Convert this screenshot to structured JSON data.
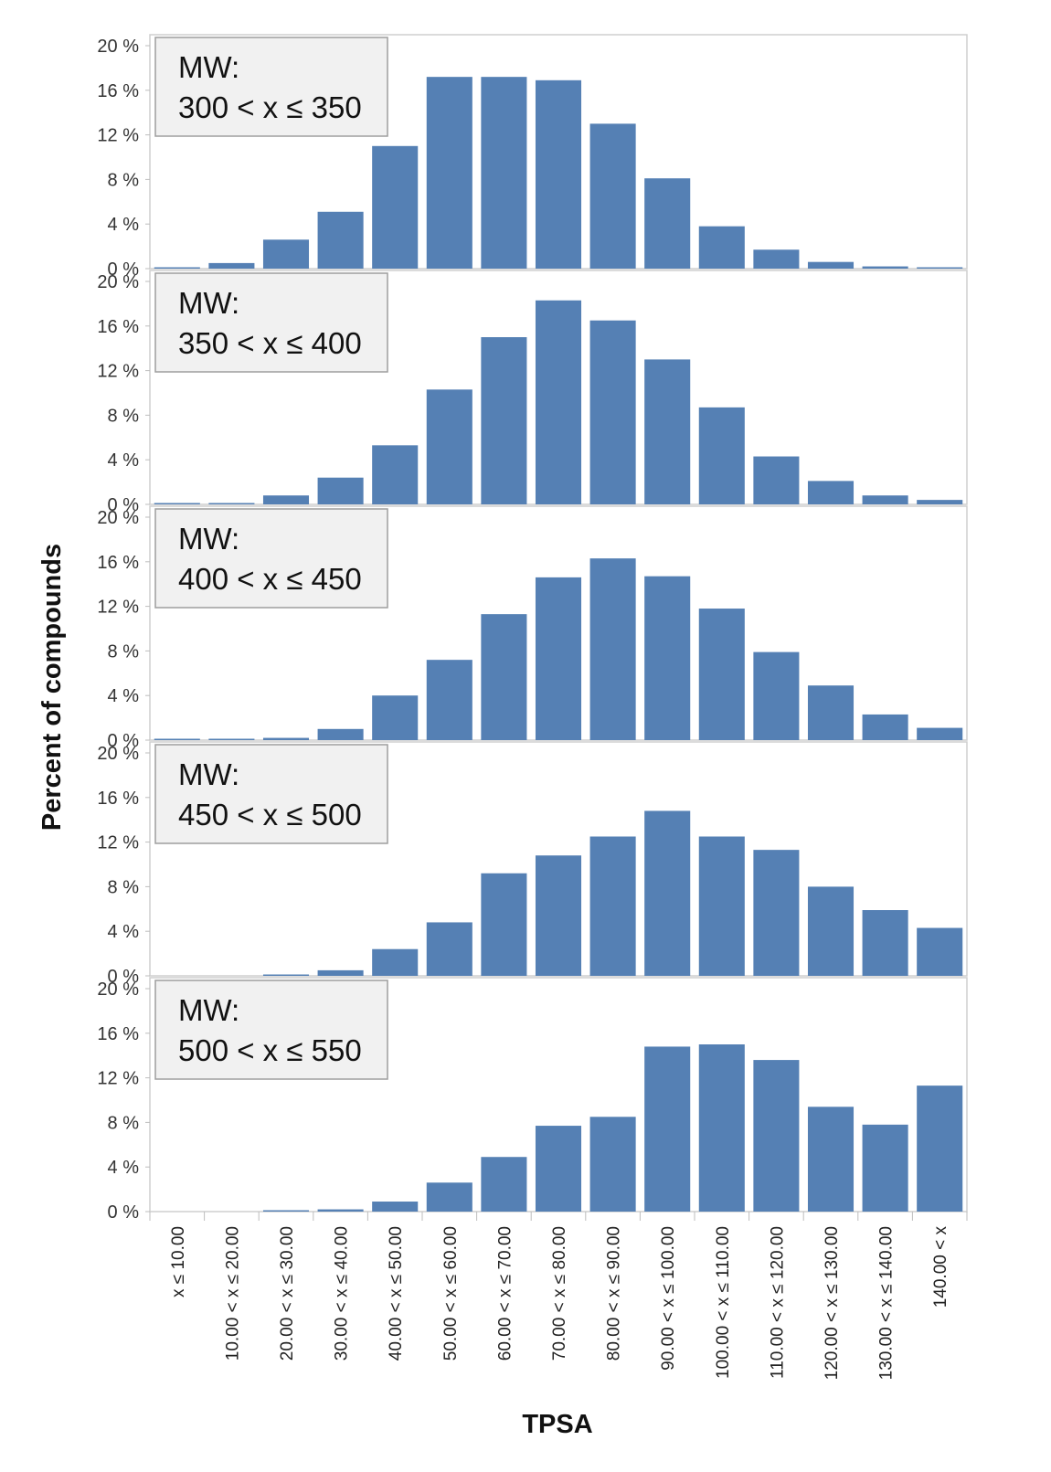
{
  "chart_data": {
    "type": "bar",
    "xlabel": "TPSA",
    "ylabel": "Percent of compounds",
    "ylim": [
      0,
      20
    ],
    "yticks": [
      0,
      4,
      8,
      12,
      16,
      20
    ],
    "ytick_suffix": " %",
    "grid": false,
    "bar_color": "#5580b4",
    "categories": [
      "x ≤ 10.00",
      "10.00 < x ≤ 20.00",
      "20.00 < x ≤ 30.00",
      "30.00 < x ≤ 40.00",
      "40.00 < x ≤ 50.00",
      "50.00 < x ≤ 60.00",
      "60.00 < x ≤ 70.00",
      "70.00 < x ≤ 80.00",
      "80.00 < x ≤ 90.00",
      "90.00 < x ≤ 100.00",
      "100.00 < x ≤ 110.00",
      "110.00 < x ≤ 120.00",
      "120.00 < x ≤ 130.00",
      "130.00 < x ≤ 140.00",
      "140.00 < x"
    ],
    "panels": [
      {
        "label_line1": "MW:",
        "label_line2": "300 < x ≤ 350",
        "values": [
          0.1,
          0.5,
          2.6,
          5.1,
          11.0,
          17.2,
          17.2,
          16.9,
          13.0,
          8.1,
          3.8,
          1.7,
          0.6,
          0.2,
          0.1
        ]
      },
      {
        "label_line1": "MW:",
        "label_line2": "350 < x ≤ 400",
        "values": [
          0.1,
          0.1,
          0.8,
          2.4,
          5.3,
          10.3,
          15.0,
          18.3,
          16.5,
          13.0,
          8.7,
          4.3,
          2.1,
          0.8,
          0.4
        ]
      },
      {
        "label_line1": "MW:",
        "label_line2": "400 < x ≤ 450",
        "values": [
          0.05,
          0.05,
          0.2,
          1.0,
          4.0,
          7.2,
          11.3,
          14.6,
          16.3,
          14.7,
          11.8,
          7.9,
          4.9,
          2.3,
          1.1
        ]
      },
      {
        "label_line1": "MW:",
        "label_line2": "450 < x ≤ 500",
        "values": [
          0,
          0,
          0.1,
          0.5,
          2.4,
          4.8,
          9.2,
          10.8,
          12.5,
          14.8,
          12.5,
          11.3,
          8.0,
          5.9,
          4.3
        ]
      },
      {
        "label_line1": "MW:",
        "label_line2": "500 < x ≤ 550",
        "values": [
          0,
          0,
          0.1,
          0.2,
          0.9,
          2.6,
          4.9,
          7.7,
          8.5,
          14.8,
          15.0,
          13.6,
          9.4,
          7.8,
          11.3
        ]
      }
    ]
  }
}
